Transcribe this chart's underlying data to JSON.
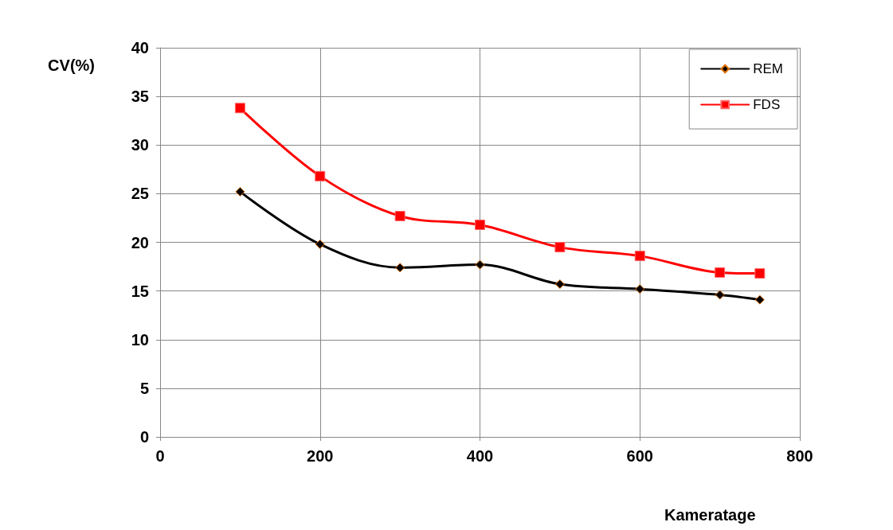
{
  "chart_data": {
    "type": "line",
    "xlabel": "Kameratage",
    "ylabel": "CV(%)",
    "x": [
      100,
      200,
      300,
      400,
      500,
      600,
      700,
      750
    ],
    "series": [
      {
        "name": "REM",
        "color": "#000000",
        "marker": "diamond",
        "values": [
          25.2,
          19.8,
          17.4,
          17.7,
          15.7,
          15.2,
          14.6,
          14.1
        ]
      },
      {
        "name": "FDS",
        "color": "#ff0000",
        "marker": "square",
        "values": [
          33.8,
          26.8,
          22.7,
          21.8,
          19.5,
          18.6,
          16.9,
          16.8
        ]
      }
    ],
    "xlim": [
      0,
      800
    ],
    "xticks": [
      0,
      200,
      400,
      600,
      800
    ],
    "ylim": [
      0,
      40
    ],
    "yticks": [
      0,
      5,
      10,
      15,
      20,
      25,
      30,
      35,
      40
    ],
    "grid": true,
    "legend": "top right",
    "line_style": "solid"
  }
}
